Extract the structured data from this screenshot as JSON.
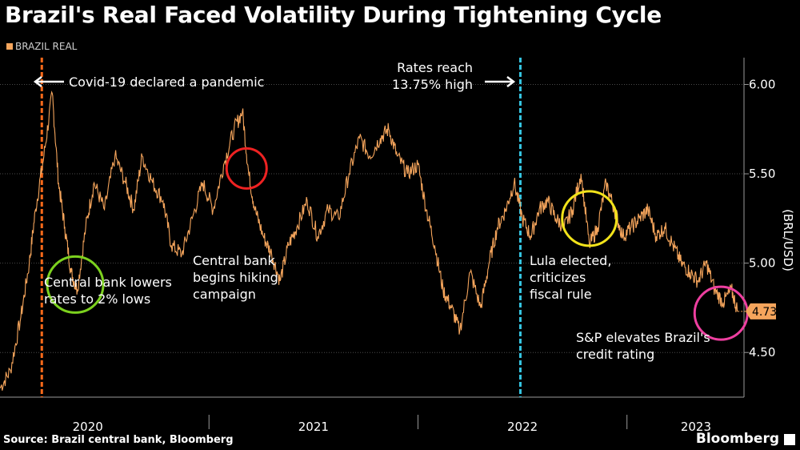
{
  "title": "Brazil's Real Faced Volatility During Tightening Cycle",
  "legend": {
    "label": "BRAZIL REAL",
    "color": "#f5a55c"
  },
  "source": "Source:  Brazil central bank, Bloomberg",
  "brand": "Bloomberg",
  "chart_data": {
    "type": "line",
    "title": "Brazil's Real Faced Volatility During Tightening Cycle",
    "ylabel": "(BRL/USD)",
    "ylim": [
      4.25,
      6.15
    ],
    "yticks": [
      "6.00",
      "5.50",
      "5.00",
      "4.50"
    ],
    "ytick_values": [
      6.0,
      5.5,
      5.0,
      4.5
    ],
    "xlim": [
      2020.0,
      2023.56
    ],
    "xticks": [
      "2020",
      "2021",
      "2022",
      "2023"
    ],
    "xtick_positions": [
      2020.42,
      2021.5,
      2022.5,
      2023.33
    ],
    "year_boundaries": [
      2021.0,
      2022.0,
      2023.0
    ],
    "series": [
      {
        "name": "BRAZIL REAL",
        "color": "#f5a55c",
        "x": [
          2020.0,
          2020.05,
          2020.1,
          2020.14,
          2020.17,
          2020.21,
          2020.25,
          2020.28,
          2020.31,
          2020.34,
          2020.37,
          2020.41,
          2020.45,
          2020.5,
          2020.55,
          2020.6,
          2020.64,
          2020.68,
          2020.73,
          2020.78,
          2020.82,
          2020.87,
          2020.92,
          2020.97,
          2021.02,
          2021.07,
          2021.12,
          2021.16,
          2021.19,
          2021.22,
          2021.26,
          2021.3,
          2021.34,
          2021.38,
          2021.42,
          2021.47,
          2021.52,
          2021.57,
          2021.62,
          2021.67,
          2021.72,
          2021.77,
          2021.82,
          2021.86,
          2021.9,
          2021.95,
          2022.0,
          2022.04,
          2022.08,
          2022.12,
          2022.16,
          2022.2,
          2022.25,
          2022.3,
          2022.34,
          2022.38,
          2022.42,
          2022.46,
          2022.5,
          2022.54,
          2022.58,
          2022.62,
          2022.66,
          2022.7,
          2022.74,
          2022.78,
          2022.82,
          2022.86,
          2022.9,
          2022.94,
          2022.98,
          2023.02,
          2023.06,
          2023.1,
          2023.14,
          2023.18,
          2023.22,
          2023.26,
          2023.3,
          2023.34,
          2023.38,
          2023.42,
          2023.46,
          2023.5,
          2023.53
        ],
        "values": [
          4.3,
          4.4,
          4.7,
          5.0,
          5.3,
          5.6,
          5.95,
          5.45,
          5.2,
          4.95,
          4.85,
          5.2,
          5.45,
          5.3,
          5.6,
          5.45,
          5.3,
          5.6,
          5.45,
          5.35,
          5.1,
          5.05,
          5.25,
          5.45,
          5.3,
          5.55,
          5.75,
          5.85,
          5.5,
          5.3,
          5.15,
          5.05,
          4.9,
          5.1,
          5.2,
          5.35,
          5.15,
          5.3,
          5.25,
          5.5,
          5.7,
          5.6,
          5.7,
          5.75,
          5.6,
          5.5,
          5.55,
          5.3,
          5.1,
          4.85,
          4.75,
          4.62,
          4.95,
          4.75,
          5.0,
          5.2,
          5.3,
          5.45,
          5.25,
          5.15,
          5.3,
          5.35,
          5.25,
          5.2,
          5.3,
          5.5,
          5.1,
          5.2,
          5.45,
          5.3,
          5.15,
          5.2,
          5.25,
          5.3,
          5.15,
          5.2,
          5.1,
          5.0,
          4.95,
          4.9,
          5.0,
          4.85,
          4.78,
          4.85,
          4.73
        ]
      }
    ],
    "last_value_label": "4.73",
    "vlines": [
      {
        "x": 2020.2,
        "color": "#ff6a1a",
        "label": "Covid-19 declared a pandemic"
      },
      {
        "x": 2022.49,
        "color": "#35c4e0",
        "label": "Rates reach 13.75% high"
      }
    ],
    "annotations": [
      {
        "lines": [
          "Covid-19 declared a pandemic"
        ]
      },
      {
        "lines": [
          "Rates reach",
          "13.75% high"
        ]
      },
      {
        "lines": [
          "Central bank lowers",
          "rates to 2% lows"
        ],
        "circle_color": "#7cd11e",
        "at": [
          2020.36,
          4.88
        ]
      },
      {
        "lines": [
          "Central bank",
          "begins hiking",
          "campaign"
        ],
        "circle_color": "#ee2222",
        "at": [
          2021.18,
          5.53
        ]
      },
      {
        "lines": [
          "Lula elected,",
          "criticizes",
          "fiscal rule"
        ],
        "circle_color": "#f2e31a",
        "at": [
          2022.82,
          5.25
        ]
      },
      {
        "lines": [
          "S&P elevates Brazil's",
          "credit rating"
        ],
        "circle_color": "#ee3fa0",
        "at": [
          2023.45,
          4.72
        ]
      }
    ]
  }
}
